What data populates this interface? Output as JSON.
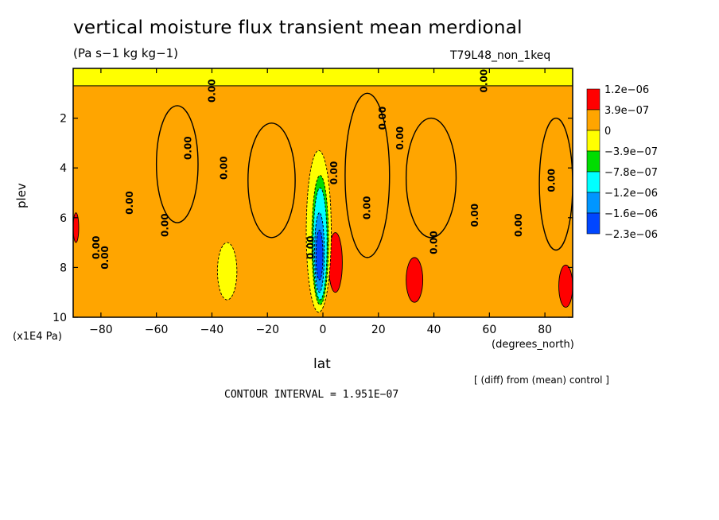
{
  "chart_data": {
    "type": "contour",
    "title": "vertical moisture flux transient mean merdional",
    "units": "(Pa s−1 kg kg−1)",
    "run_label": "T79L48_non_1keq",
    "xlabel": "lat",
    "x_unit_label": "(degrees_north)",
    "ylabel": "plev",
    "y_unit_label": "(x1E4 Pa)",
    "xlim": [
      -90,
      90
    ],
    "ylim": [
      10,
      0
    ],
    "x_ticks": [
      -80,
      -60,
      -40,
      -20,
      0,
      20,
      40,
      60,
      80
    ],
    "x_tick_labels": [
      "−80",
      "−60",
      "−40",
      "−20",
      "0",
      "20",
      "40",
      "60",
      "80"
    ],
    "y_ticks": [
      2,
      4,
      6,
      8,
      10
    ],
    "y_tick_labels": [
      "2",
      "4",
      "6",
      "8",
      "10"
    ],
    "legend": {
      "labels": [
        "1.2e−06",
        "3.9e−07",
        "0",
        "−3.9e−07",
        "−7.8e−07",
        "−1.2e−06",
        "−1.6e−06",
        "−2.3e−06"
      ],
      "colors": [
        "#ff0000",
        "#ffa500",
        "#ffff00",
        "#00dd00",
        "#00ffff",
        "#0096ff",
        "#0046ff"
      ]
    },
    "contour_label": "0.00",
    "zero_label_positions": [
      {
        "lat": -80.6,
        "plev": 7.2
      },
      {
        "lat": -77.4,
        "plev": 7.6
      },
      {
        "lat": -68.5,
        "plev": 5.4
      },
      {
        "lat": -55.8,
        "plev": 6.3
      },
      {
        "lat": -47.4,
        "plev": 3.2
      },
      {
        "lat": -34.6,
        "plev": 4.0
      },
      {
        "lat": -3.3,
        "plev": 7.2
      },
      {
        "lat": 5.2,
        "plev": 4.2
      },
      {
        "lat": 17.1,
        "plev": 5.6
      },
      {
        "lat": 22.6,
        "plev": 2.0
      },
      {
        "lat": 29.0,
        "plev": 2.8
      },
      {
        "lat": 41.2,
        "plev": 7.0
      },
      {
        "lat": 55.9,
        "plev": 5.9
      },
      {
        "lat": 59.2,
        "plev": 0.5
      },
      {
        "lat": 71.6,
        "plev": 6.3
      },
      {
        "lat": 83.6,
        "plev": 4.5
      },
      {
        "lat": -38.8,
        "plev": 0.9
      }
    ],
    "regions": [
      {
        "level": "0",
        "lat": [
          -60,
          -45
        ],
        "plev": [
          1.5,
          6.2
        ]
      },
      {
        "level": "0",
        "lat": [
          -27,
          -10
        ],
        "plev": [
          2.2,
          6.8
        ]
      },
      {
        "level": "0",
        "lat": [
          8,
          24
        ],
        "plev": [
          1.0,
          7.6
        ]
      },
      {
        "level": "0",
        "lat": [
          30,
          48
        ],
        "plev": [
          2.0,
          6.8
        ]
      },
      {
        "level": "0",
        "lat": [
          78,
          90
        ],
        "plev": [
          2.0,
          7.3
        ]
      },
      {
        "level": "3.9e−07",
        "lat": [
          2,
          7
        ],
        "plev": [
          6.6,
          9.0
        ]
      },
      {
        "level": "3.9e−07",
        "lat": [
          30,
          36
        ],
        "plev": [
          7.6,
          9.4
        ]
      },
      {
        "level": "3.9e−07",
        "lat": [
          85,
          90
        ],
        "plev": [
          7.9,
          9.6
        ]
      },
      {
        "level": "3.9e−07",
        "lat": [
          -90,
          -88
        ],
        "plev": [
          5.8,
          7.0
        ]
      },
      {
        "level": "−3.9e−07",
        "lat": [
          -38,
          -31
        ],
        "plev": [
          7.0,
          9.3
        ]
      },
      {
        "level": "−3.9e−07",
        "lat": [
          -6,
          3
        ],
        "plev": [
          3.3,
          9.8
        ]
      },
      {
        "level": "−7.8e−07",
        "lat": [
          -4,
          2
        ],
        "plev": [
          4.3,
          9.5
        ]
      },
      {
        "level": "−1.2e−06",
        "lat": [
          -3.5,
          1.5
        ],
        "plev": [
          4.8,
          9.3
        ]
      },
      {
        "level": "−1.6e−06",
        "lat": [
          -3,
          0.5
        ],
        "plev": [
          5.8,
          9.0
        ]
      },
      {
        "level": "−2.3e−06",
        "lat": [
          -2.5,
          0
        ],
        "plev": [
          6.5,
          8.5
        ]
      }
    ]
  },
  "footer": {
    "note": "[ (diff) from (mean) control ]",
    "contour_interval": "CONTOUR INTERVAL = 1.951E−07"
  }
}
